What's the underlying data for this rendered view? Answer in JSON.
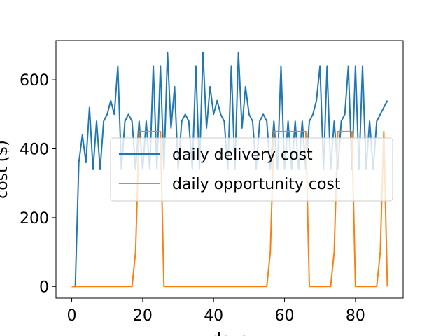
{
  "chart_data": {
    "type": "line",
    "title": "",
    "xlabel": "days",
    "ylabel": "cost ($)",
    "xlim": [
      -4.45,
      93.45
    ],
    "ylim": [
      -34,
      714
    ],
    "xticks": [
      0,
      20,
      40,
      60,
      80
    ],
    "yticks": [
      0,
      200,
      400,
      600
    ],
    "grid": false,
    "legend_position": "center-right",
    "series": [
      {
        "name": "daily delivery cost",
        "color": "#1f77b4",
        "x": [
          0,
          1,
          2,
          3,
          4,
          5,
          6,
          7,
          8,
          9,
          10,
          11,
          12,
          13,
          14,
          15,
          16,
          17,
          18,
          19,
          20,
          21,
          22,
          23,
          24,
          25,
          26,
          27,
          28,
          29,
          30,
          31,
          32,
          33,
          34,
          35,
          36,
          37,
          38,
          39,
          40,
          41,
          42,
          43,
          44,
          45,
          46,
          47,
          48,
          49,
          50,
          51,
          52,
          53,
          54,
          55,
          56,
          57,
          58,
          59,
          60,
          61,
          62,
          63,
          64,
          65,
          66,
          67,
          68,
          69,
          70,
          71,
          72,
          73,
          74,
          75,
          76,
          77,
          78,
          79,
          80,
          81,
          82,
          83,
          84,
          85,
          86,
          87,
          88,
          89
        ],
        "y": [
          0,
          0,
          360,
          440,
          360,
          520,
          340,
          480,
          340,
          480,
          500,
          540,
          500,
          640,
          340,
          480,
          500,
          480,
          340,
          480,
          340,
          480,
          340,
          640,
          340,
          640,
          340,
          680,
          460,
          580,
          340,
          480,
          500,
          480,
          340,
          640,
          340,
          680,
          460,
          580,
          500,
          540,
          500,
          480,
          340,
          640,
          340,
          680,
          460,
          580,
          500,
          480,
          340,
          480,
          500,
          480,
          340,
          480,
          340,
          640,
          340,
          480,
          340,
          480,
          340,
          480,
          340,
          480,
          500,
          540,
          640,
          340,
          640,
          340,
          480,
          340,
          480,
          500,
          640,
          340,
          640,
          340,
          640,
          340,
          480,
          340,
          480,
          500,
          520,
          540
        ]
      },
      {
        "name": "daily opportunity cost",
        "color": "#ff7f0e",
        "x": [
          0,
          1,
          2,
          3,
          4,
          5,
          6,
          7,
          8,
          9,
          10,
          11,
          12,
          13,
          14,
          15,
          16,
          17,
          18,
          19,
          20,
          21,
          22,
          23,
          24,
          25,
          26,
          27,
          28,
          29,
          30,
          31,
          32,
          33,
          34,
          35,
          36,
          37,
          38,
          39,
          40,
          41,
          42,
          43,
          44,
          45,
          46,
          47,
          48,
          49,
          50,
          51,
          52,
          53,
          54,
          55,
          56,
          57,
          58,
          59,
          60,
          61,
          62,
          63,
          64,
          65,
          66,
          67,
          68,
          69,
          70,
          71,
          72,
          73,
          74,
          75,
          76,
          77,
          78,
          79,
          80,
          81,
          82,
          83,
          84,
          85,
          86,
          87,
          88,
          89
        ],
        "y": [
          0,
          0,
          0,
          0,
          0,
          0,
          0,
          0,
          0,
          0,
          0,
          0,
          0,
          0,
          0,
          0,
          0,
          0,
          100,
          450,
          450,
          450,
          450,
          450,
          450,
          450,
          0,
          0,
          0,
          0,
          0,
          0,
          0,
          0,
          0,
          0,
          0,
          0,
          0,
          0,
          0,
          0,
          0,
          0,
          0,
          0,
          0,
          0,
          0,
          0,
          0,
          0,
          0,
          0,
          0,
          0,
          100,
          450,
          450,
          450,
          450,
          450,
          450,
          450,
          450,
          450,
          450,
          0,
          0,
          0,
          0,
          0,
          0,
          0,
          100,
          450,
          450,
          450,
          450,
          450,
          0,
          0,
          0,
          0,
          0,
          0,
          0,
          100,
          450,
          0
        ]
      }
    ]
  }
}
